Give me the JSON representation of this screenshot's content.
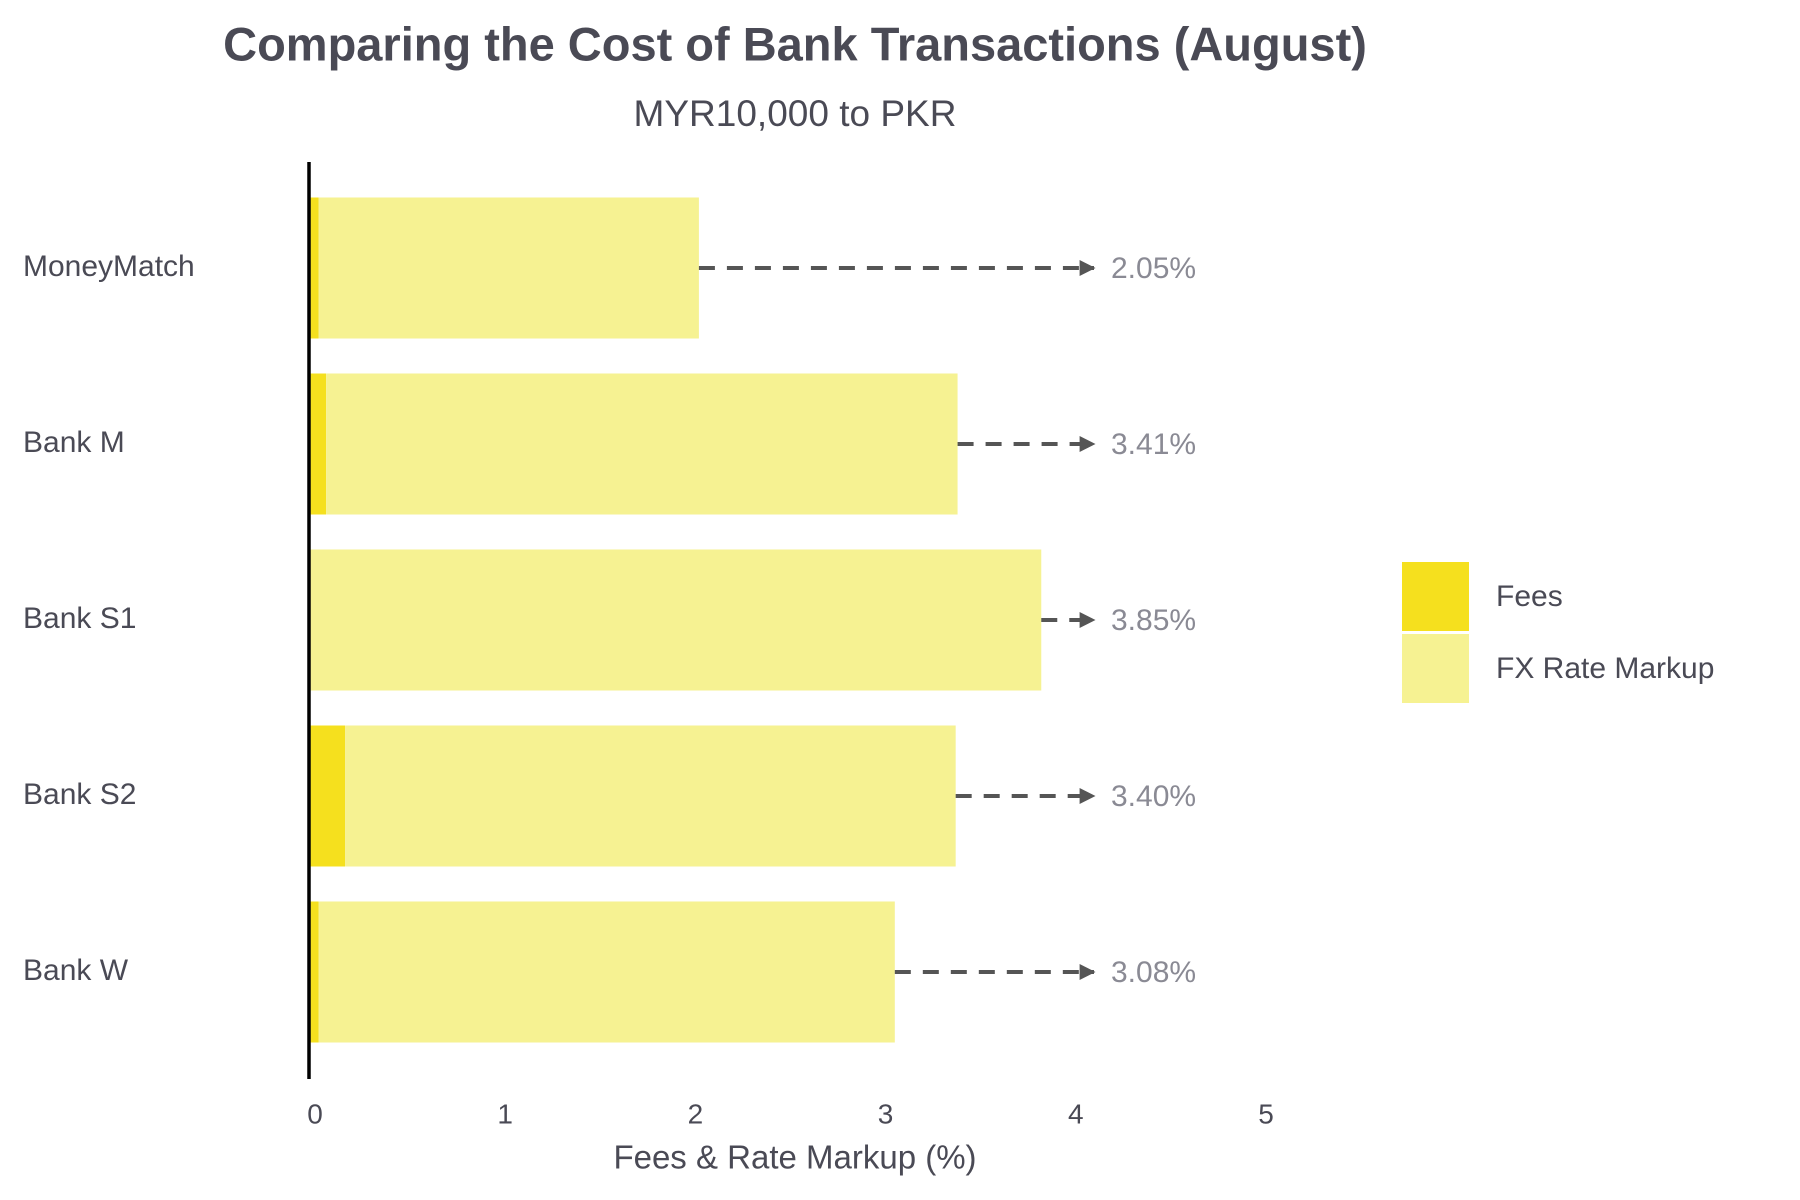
{
  "chart_data": {
    "type": "stacked-barh",
    "title": "Comparing the Cost of Bank Transactions (August)",
    "subtitle": "MYR10,000 to PKR",
    "x_label": "Fees & Rate Markup (%)",
    "categories": [
      "MoneyMatch",
      "Bank M",
      "Bank S1",
      "Bank S2",
      "Bank W"
    ],
    "series": [
      {
        "name": "Fees",
        "color": "#f5e01e",
        "values": [
          0.05,
          0.09,
          0,
          0.19,
          0.05
        ]
      },
      {
        "name": "FX Rate Markup",
        "color": "#f6f292",
        "values": [
          2.0,
          3.32,
          3.85,
          3.21,
          3.03
        ]
      }
    ],
    "totals": {
      "values": [
        2.05,
        3.41,
        3.85,
        3.4,
        3.08
      ],
      "value_labels": [
        "2.05%",
        "3.41%",
        "3.85%",
        "3.40%",
        "3.08%"
      ]
    },
    "xlim": [
      0,
      5
    ],
    "xticks": [
      0,
      1,
      2,
      3,
      4,
      5
    ],
    "legend": "right"
  }
}
